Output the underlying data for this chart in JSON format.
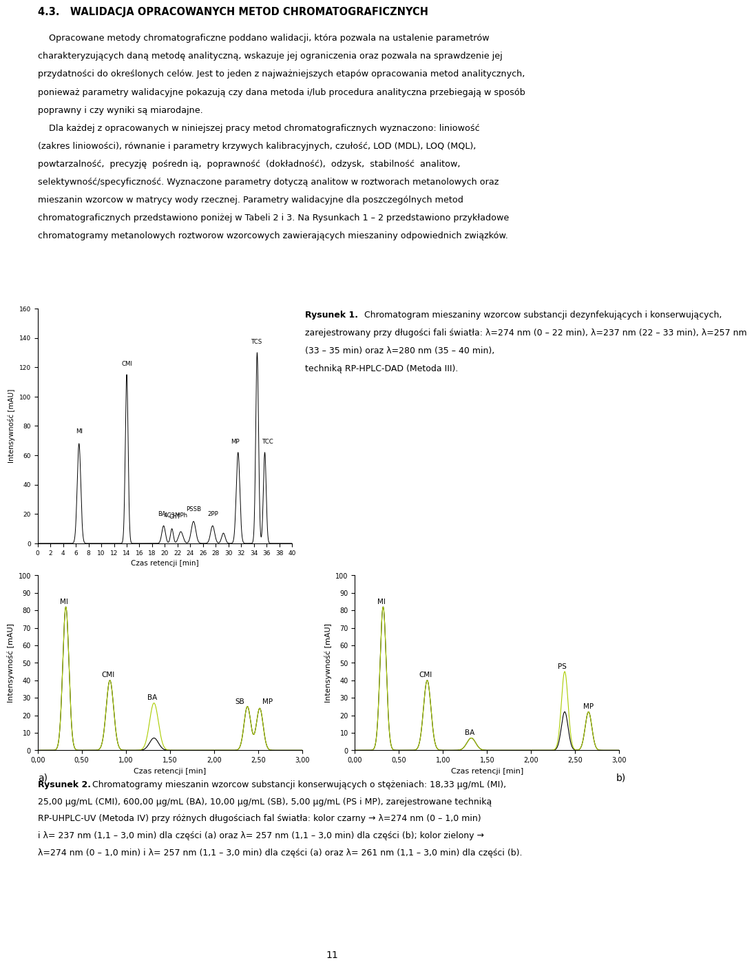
{
  "title": "4.3.   WALIDACJA OPRACOWANYCH METOD CHROMATOGRAFICZNYCH",
  "paragraph1": "    Opracowane metody chromatograficzne poddano walidacji, która pozwala na ustalenie parametrów charakteryzujących daną metodę analityczną, wskazuje jej ograniczenia oraz pozwala na sprawdzenie jej przydatności do określonych celów. Jest to jeden z najważniejszych etapów opracowania metod analitycznych, ponieważ parametry walidacyjne pokazują czy dana metoda i/lub procedura analityczna przebiegają w sposób poprawny i czy wyniki są miarodajne.",
  "paragraph2_line1": "    Dla każdej z opracowanych w niniejszej pracy metod chromatograficznych wyznaczono: liniowość",
  "paragraph2_line2": "(zakres liniowości), równanie i parametry krzywych kalibracyjnych, czułość, LOD (MDL), LOQ (MQL),",
  "paragraph2_line3": "powtarzalność,  precyzję  pośredn ią,  poprawność  (dokładność),  odzysk,  stabilność  analitow,",
  "paragraph2_line4": "selektywność/specyficzność. Wyznaczone parametry dotyczą analitow w roztworach metanolowych oraz",
  "paragraph2_line5": "mieszanin wzorcow w matrycy wody rzecznej. Parametry walidacyjne dla poszczególnych metod",
  "paragraph2_line6": "chromatograficznych przedstawiono poniżej w Tabeli 2 i 3. Na Rysunkach 1 – 2 przedstawiono przykładowe",
  "paragraph2_line7": "chromatogramy metanolowych roztworow wzorcowych zawierających mieszaniny odpowiednich związków.",
  "fig1_caption_bold": "Rysunek 1.",
  "fig1_caption": " Chromatogram mieszaniny wzorcow substancji dezynfekujących i konserwujących, zarejestrowany przy długości fali światła: λ=274 nm (0 – 22 min), λ=237 nm (22 – 33 min), λ=257 nm (33 – 35 min) oraz λ=280 nm (35 – 40 min), techniką RP-HPLC-DAD (Metoda III).",
  "fig2_caption_bold": "Rysunek 2.",
  "fig2_caption_rest": " Chromatogramy mieszanin wzorcow substancji konserwujących o stężeniach: 18,33 μg/mL (MI), 25,00 μg/mL (CMI), 600,00 μg/mL (BA), 10,00 μg/mL (SB), 5,00 μg/mL (PS i MP), zarejestrowane techniką RP-UHPLC-UV (Metoda IV) przy różnych długościach fal światła: kolor czarny → λ=274 nm (0 – 1,0 min) i λ= 237 nm (1,1 – 3,0 min) dla części (a) oraz λ= 257 nm (1,1 – 3,0 min) dla części (b); kolor zielony → λ=274 nm (0 – 1,0 min) i λ= 257 nm (1,1 – 3,0 min) dla części (a) oraz λ= 261 nm (1,1 – 3,0 min) dla części (b).",
  "page_number": "11",
  "background_color": "#ffffff",
  "text_color": "#000000",
  "chrom2_green_color": "#aacc00"
}
